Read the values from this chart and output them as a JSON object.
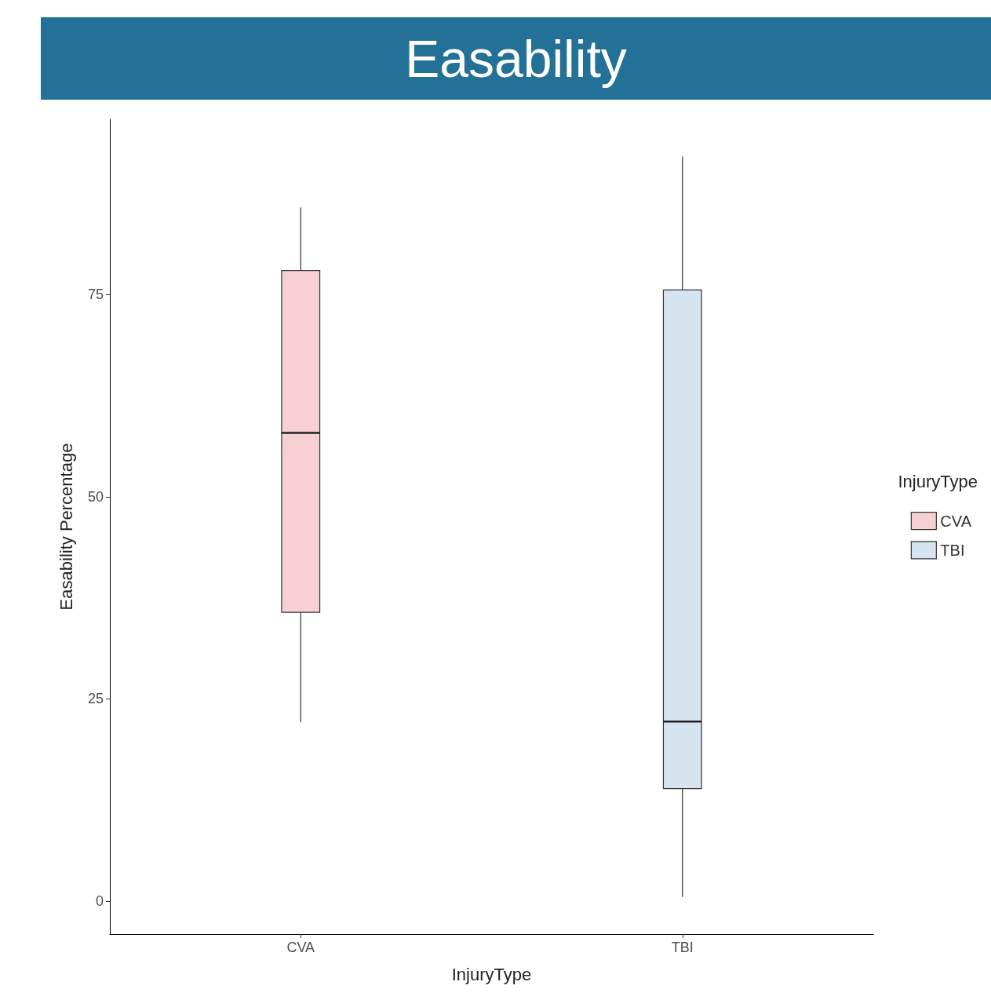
{
  "chart_data": {
    "type": "box",
    "title": "Easability",
    "xlabel": "InjuryType",
    "ylabel": "Easability Percentage",
    "legend_title": "InjuryType",
    "categories": [
      "CVA",
      "TBI"
    ],
    "series": [
      {
        "name": "CVA",
        "color": "#f7d0d3",
        "boxes": [
          {
            "low": 22.1,
            "q1": 35.7,
            "median": 57.9,
            "q3": 78.0,
            "high": 85.8
          },
          null
        ]
      },
      {
        "name": "TBI",
        "color": "#d6e4ef",
        "boxes": [
          null,
          {
            "low": 0.5,
            "q1": 13.9,
            "median": 22.2,
            "q3": 75.6,
            "high": 92.1
          }
        ]
      }
    ],
    "ylim": [
      -4.1,
      96.7
    ],
    "yticks": [
      0,
      25,
      50,
      75
    ],
    "grid": false,
    "legend": "right"
  }
}
